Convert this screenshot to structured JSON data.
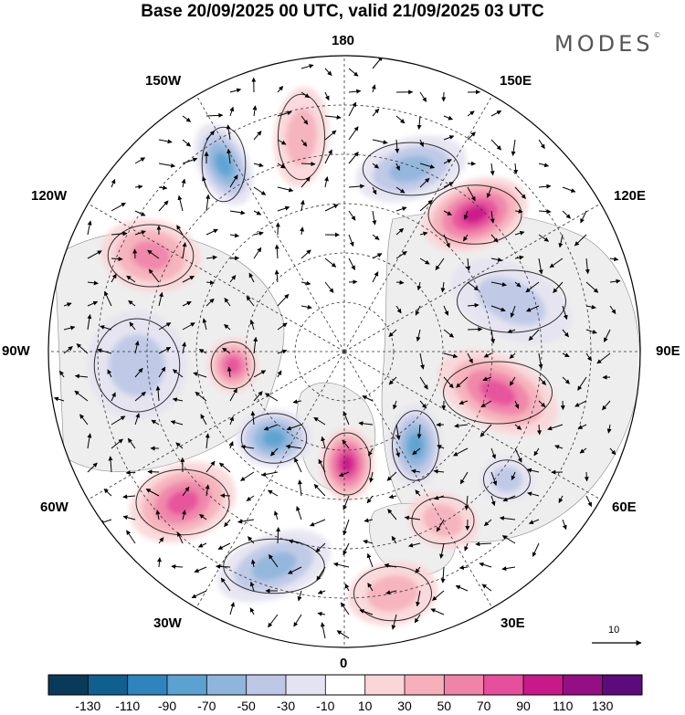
{
  "title": "Base 20/09/2025 00 UTC, valid 21/09/2025 03 UTC",
  "brand": "MODES",
  "brand_mark": "©",
  "longitude_labels": {
    "n180": "180",
    "w150": "150W",
    "e150": "150E",
    "w120": "120W",
    "e120": "120E",
    "w90": "90W",
    "e90": "90E",
    "w60": "60W",
    "e60": "60E",
    "w30": "30W",
    "e30": "30E",
    "zero": "0"
  },
  "reference_vector": {
    "label": "10"
  },
  "colorbar": {
    "colors": [
      "#0a3a5a",
      "#0f5f8f",
      "#2f84be",
      "#5ba2d0",
      "#8fb5dc",
      "#bdc8e6",
      "#e4e3f1",
      "#ffffff",
      "#fad6d8",
      "#f6b0bb",
      "#f083a8",
      "#e64f9b",
      "#c8198a",
      "#930f83",
      "#5c0b7c"
    ],
    "ticks": [
      "-130",
      "-110",
      "-90",
      "-70",
      "-50",
      "-30",
      "-10",
      "10",
      "30",
      "50",
      "70",
      "90",
      "110",
      "130"
    ]
  },
  "anomaly_centers": [
    {
      "name": "blue-alaska",
      "value": -70
    },
    {
      "name": "blue-east-siberia",
      "value": -60
    },
    {
      "name": "red-far-east",
      "value": 95
    },
    {
      "name": "red-canada",
      "value": 55
    },
    {
      "name": "red-north-pacific",
      "value": 45
    },
    {
      "name": "blue-central-asia",
      "value": -40
    },
    {
      "name": "blue-hudson",
      "value": -45
    },
    {
      "name": "red-baffin",
      "value": 75
    },
    {
      "name": "blue-labrador",
      "value": -70
    },
    {
      "name": "red-greenland-sea",
      "value": 90
    },
    {
      "name": "blue-scandinavia",
      "value": -75
    },
    {
      "name": "red-central-siberia",
      "value": 70
    },
    {
      "name": "red-north-atlantic",
      "value": 70
    },
    {
      "name": "blue-east-atlantic",
      "value": -65
    },
    {
      "name": "red-europe",
      "value": 45
    },
    {
      "name": "red-eurasia-south",
      "value": 40
    },
    {
      "name": "blue-caspian",
      "value": -45
    }
  ]
}
